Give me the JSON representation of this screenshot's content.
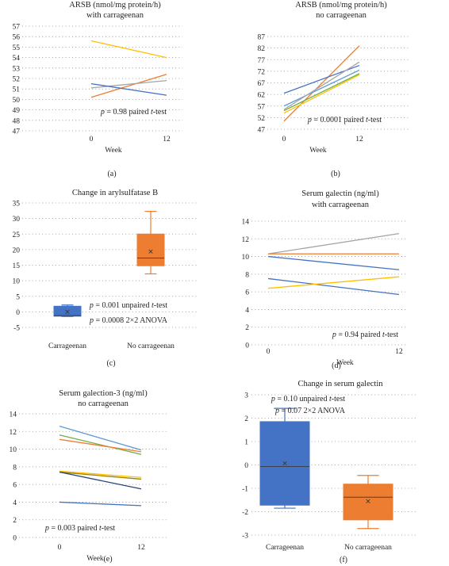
{
  "colors": {
    "blue": "#4472c4",
    "orange": "#ed7d31",
    "grey": "#a5a5a5",
    "yellow": "#ffc000",
    "lightblue": "#5b9bd5",
    "green": "#70ad47",
    "darkblue": "#264478",
    "olive": "#9e8400",
    "box_blue": "#4472c4",
    "box_orange": "#ed7d31"
  },
  "chart_data": [
    {
      "panel_label": "(a)",
      "type": "line",
      "title": [
        "ARSB (nmol/mg protein/h)",
        "with carrageenan"
      ],
      "x_ticks": [
        "0",
        "Week",
        "12"
      ],
      "x": [
        0,
        12
      ],
      "ylim": [
        47,
        57
      ],
      "y_ticks": [
        47,
        48,
        49,
        50,
        51,
        52,
        53,
        54,
        55,
        56,
        57
      ],
      "grid": true,
      "annotation": [
        {
          "p": "p",
          "rest": " = 0.98 paired ",
          "t": "t",
          "tail": "-test"
        }
      ],
      "series": [
        {
          "color": "yellow",
          "values": [
            55.6,
            54.0
          ]
        },
        {
          "color": "orange",
          "values": [
            50.2,
            52.4
          ]
        },
        {
          "color": "grey",
          "values": [
            51.1,
            51.8
          ]
        },
        {
          "color": "blue",
          "values": [
            51.5,
            50.4
          ]
        }
      ]
    },
    {
      "panel_label": "(b)",
      "type": "line",
      "title": [
        "ARSB (nmol/mg protein/h)",
        "no carrageenan"
      ],
      "x_ticks": [
        "0",
        "Week",
        "12"
      ],
      "x": [
        0,
        12
      ],
      "ylim": [
        47,
        87
      ],
      "y_ticks": [
        47,
        52,
        57,
        62,
        67,
        72,
        77,
        82,
        87
      ],
      "grid": true,
      "annotation": [
        {
          "p": "p",
          "rest": " = 0.0001 paired ",
          "t": "t",
          "tail": "-test"
        }
      ],
      "series": [
        {
          "color": "orange",
          "values": [
            50.5,
            83.0
          ]
        },
        {
          "color": "blue",
          "values": [
            62.5,
            74.5
          ]
        },
        {
          "color": "lightblue",
          "values": [
            57.0,
            72.5
          ]
        },
        {
          "color": "grey",
          "values": [
            55.5,
            76.0
          ]
        },
        {
          "color": "yellow",
          "values": [
            54.0,
            70.5
          ]
        },
        {
          "color": "green",
          "values": [
            55.0,
            71.0
          ]
        }
      ]
    },
    {
      "panel_label": "(c)",
      "type": "box",
      "title": [
        "Change in arylsulfatase B"
      ],
      "categories": [
        "Carrageenan",
        "No carrageenan"
      ],
      "ylim": [
        -5,
        35
      ],
      "y_ticks": [
        -5,
        0,
        5,
        10,
        15,
        20,
        25,
        30,
        35
      ],
      "grid": true,
      "annotation": [
        {
          "p": "p",
          "rest": " = 0.001 unpaired ",
          "t": "t",
          "tail": "-test"
        },
        {
          "p": "p",
          "rest": " = 0.0008 2×2 ANOVA",
          "t": "",
          "tail": ""
        }
      ],
      "boxes": [
        {
          "color": "box_blue",
          "min": -1.5,
          "q1": -1.4,
          "median": -1.2,
          "q3": 1.8,
          "max": 2.2,
          "mean": 0.0
        },
        {
          "color": "box_orange",
          "min": 12.2,
          "q1": 14.8,
          "median": 17.3,
          "q3": 25.0,
          "max": 32.3,
          "mean": 19.4
        }
      ]
    },
    {
      "panel_label": "(d)",
      "type": "line",
      "title": [
        "Serum galectin (ng/ml)",
        "with carrageenan"
      ],
      "x_ticks": [
        "0",
        "Week",
        "12"
      ],
      "x": [
        0,
        12
      ],
      "ylim": [
        0,
        14
      ],
      "y_ticks": [
        0,
        2,
        4,
        6,
        8,
        10,
        12,
        14
      ],
      "grid": true,
      "annotation": [
        {
          "p": "p",
          "rest": " = 0.94 paired ",
          "t": "t",
          "tail": "-test"
        }
      ],
      "series": [
        {
          "color": "grey",
          "values": [
            10.3,
            12.6
          ]
        },
        {
          "color": "orange",
          "values": [
            10.3,
            10.3
          ]
        },
        {
          "color": "blue",
          "values": [
            10.0,
            8.5
          ]
        },
        {
          "color": "blue",
          "values": [
            7.5,
            5.7
          ]
        },
        {
          "color": "yellow",
          "values": [
            6.4,
            7.7
          ]
        }
      ]
    },
    {
      "panel_label": "(e)",
      "type": "line",
      "title": [
        "Serum galection-3 (ng/ml)",
        "no carrageenan"
      ],
      "x_ticks": [
        "0",
        "Week",
        "12"
      ],
      "x": [
        0,
        12
      ],
      "ylim": [
        0,
        14
      ],
      "y_ticks": [
        0,
        2,
        4,
        6,
        8,
        10,
        12,
        14
      ],
      "grid": true,
      "annotation": [
        {
          "p": "p",
          "rest": " = 0.003 paired ",
          "t": "t",
          "tail": "-test"
        }
      ],
      "series": [
        {
          "color": "lightblue",
          "values": [
            12.6,
            9.9
          ]
        },
        {
          "color": "green",
          "values": [
            11.6,
            9.4
          ]
        },
        {
          "color": "orange",
          "values": [
            11.1,
            9.7
          ]
        },
        {
          "color": "yellow",
          "values": [
            7.5,
            6.8
          ]
        },
        {
          "color": "olive",
          "values": [
            7.4,
            6.6
          ]
        },
        {
          "color": "darkblue",
          "values": [
            7.4,
            5.5
          ]
        },
        {
          "color": "blue",
          "values": [
            4.0,
            3.6
          ]
        }
      ]
    },
    {
      "panel_label": "(f)",
      "type": "box",
      "title": [
        "Change in serum galectin"
      ],
      "categories": [
        "Carrageenan",
        "No carrageenan"
      ],
      "ylim": [
        -3,
        3
      ],
      "y_ticks": [
        -3,
        -2,
        -1,
        0,
        1,
        2,
        3
      ],
      "grid": true,
      "annotation": [
        {
          "p": "p",
          "rest": " = 0.10 unpaired ",
          "t": "t",
          "tail": "-test"
        },
        {
          "p": "p",
          "rest": " = 0.07 2×2 ANOVA",
          "t": "",
          "tail": ""
        }
      ],
      "boxes": [
        {
          "color": "box_blue",
          "min": -1.85,
          "q1": -1.72,
          "median": -0.07,
          "q3": 1.85,
          "max": 2.42,
          "mean": 0.07
        },
        {
          "color": "box_orange",
          "min": -2.72,
          "q1": -2.35,
          "median": -1.38,
          "q3": -0.82,
          "max": -0.45,
          "mean": -1.55
        }
      ]
    }
  ]
}
